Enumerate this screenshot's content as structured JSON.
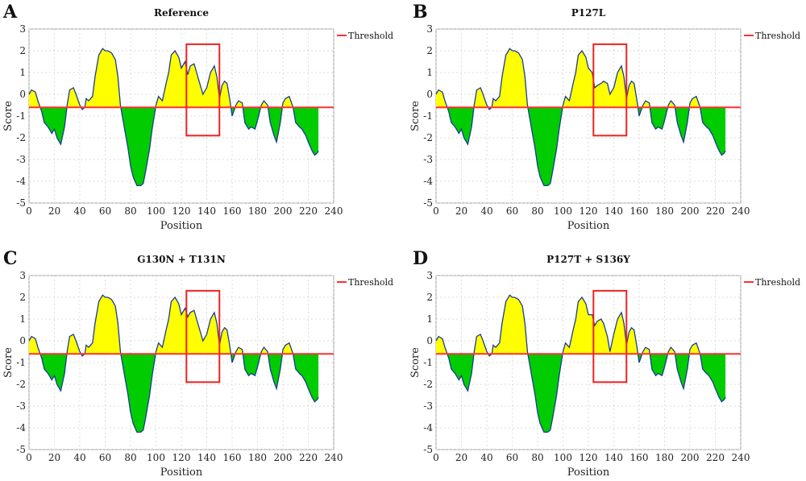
{
  "chart_data": [
    {
      "type": "area",
      "letter": "A",
      "title": "Reference",
      "xlabel": "Position",
      "ylabel": "Score",
      "xlim": [
        0,
        240
      ],
      "ylim": [
        -5,
        3
      ],
      "xticks": [
        "0",
        "20",
        "40",
        "60",
        "80",
        "100",
        "120",
        "140",
        "160",
        "180",
        "200",
        "220",
        "240"
      ],
      "yticks": [
        "3",
        "2",
        "1",
        "0",
        "-1",
        "-2",
        "-3",
        "-4",
        "-5"
      ],
      "threshold": -0.6,
      "legend": "Threshold",
      "legend_position": "top-right",
      "grid": true,
      "highlight_box": {
        "x": [
          124,
          150
        ],
        "y": [
          -1.9,
          2.3
        ]
      },
      "colors": {
        "above": "#ffff00",
        "below": "#00cc00",
        "line": "#1a3d8f",
        "threshold": "#ff3030",
        "box": "#ee2222"
      },
      "series": [
        {
          "x": [
            0,
            2,
            5,
            7,
            10,
            12,
            15,
            18,
            20,
            22,
            25,
            28,
            30,
            32,
            35,
            37,
            40,
            42,
            44,
            45,
            47,
            50,
            52,
            55,
            58,
            60,
            62,
            65,
            68,
            70,
            72,
            75,
            78,
            80,
            82,
            85,
            88,
            90,
            92,
            95,
            97,
            100,
            102,
            105,
            108,
            110,
            112,
            115,
            118,
            120,
            123,
            125,
            127,
            130,
            132,
            135,
            137,
            140,
            143,
            146,
            148,
            150,
            152,
            154,
            156,
            158,
            160,
            163,
            165,
            168,
            170,
            173,
            175,
            178,
            180,
            183,
            185,
            188,
            190,
            193,
            195,
            198,
            200,
            202,
            205,
            208,
            210,
            213,
            215,
            218,
            220,
            223,
            225,
            227,
            228
          ],
          "y": [
            0.0,
            0.2,
            0.1,
            -0.3,
            -0.8,
            -1.3,
            -1.5,
            -1.8,
            -1.6,
            -2.0,
            -2.3,
            -1.5,
            -0.5,
            0.2,
            0.3,
            0.0,
            -0.5,
            -0.7,
            -0.6,
            -0.2,
            -0.3,
            -0.1,
            0.8,
            1.8,
            2.1,
            2.0,
            2.0,
            1.9,
            1.6,
            0.8,
            -0.5,
            -1.5,
            -2.5,
            -3.3,
            -3.8,
            -4.2,
            -4.2,
            -4.1,
            -3.5,
            -2.5,
            -1.6,
            -0.5,
            -0.1,
            -0.3,
            0.5,
            1.0,
            1.8,
            2.0,
            1.7,
            1.2,
            1.5,
            0.9,
            1.3,
            1.4,
            1.0,
            0.4,
            0.0,
            0.3,
            1.0,
            1.3,
            0.8,
            -0.2,
            0.4,
            0.6,
            0.5,
            -0.2,
            -1.0,
            -0.5,
            -0.3,
            -0.4,
            -1.3,
            -1.6,
            -1.5,
            -1.6,
            -1.2,
            -0.5,
            -0.3,
            -0.5,
            -1.3,
            -1.9,
            -2.2,
            -1.3,
            -0.4,
            -0.2,
            -0.1,
            -0.6,
            -1.3,
            -1.5,
            -1.6,
            -1.9,
            -2.2,
            -2.6,
            -2.8,
            -2.7,
            -2.6
          ]
        }
      ]
    },
    {
      "type": "area",
      "letter": "B",
      "title": "P127L",
      "xlabel": "Position",
      "ylabel": "Score",
      "xlim": [
        0,
        240
      ],
      "ylim": [
        -5,
        3
      ],
      "xticks": [
        "0",
        "20",
        "40",
        "60",
        "80",
        "100",
        "120",
        "140",
        "160",
        "180",
        "200",
        "220",
        "240"
      ],
      "yticks": [
        "3",
        "2",
        "1",
        "0",
        "-1",
        "-2",
        "-3",
        "-4",
        "-5"
      ],
      "threshold": -0.6,
      "legend": "Threshold",
      "legend_position": "top-right",
      "grid": true,
      "highlight_box": {
        "x": [
          124,
          150
        ],
        "y": [
          -1.9,
          2.3
        ]
      },
      "colors": {
        "above": "#ffff00",
        "below": "#00cc00",
        "line": "#1a3d8f",
        "threshold": "#ff3030",
        "box": "#ee2222"
      },
      "series": [
        {
          "x": [
            0,
            2,
            5,
            7,
            10,
            12,
            15,
            18,
            20,
            22,
            25,
            28,
            30,
            32,
            35,
            37,
            40,
            42,
            44,
            45,
            47,
            50,
            52,
            55,
            58,
            60,
            62,
            65,
            68,
            70,
            72,
            75,
            78,
            80,
            82,
            85,
            88,
            90,
            92,
            95,
            97,
            100,
            102,
            105,
            108,
            110,
            112,
            115,
            118,
            120,
            123,
            125,
            127,
            130,
            132,
            135,
            137,
            140,
            143,
            146,
            148,
            150,
            152,
            154,
            156,
            158,
            160,
            163,
            165,
            168,
            170,
            173,
            175,
            178,
            180,
            183,
            185,
            188,
            190,
            193,
            195,
            198,
            200,
            202,
            205,
            208,
            210,
            213,
            215,
            218,
            220,
            223,
            225,
            227,
            228
          ],
          "y": [
            0.0,
            0.2,
            0.1,
            -0.3,
            -0.8,
            -1.3,
            -1.5,
            -1.8,
            -1.6,
            -2.0,
            -2.3,
            -1.5,
            -0.5,
            0.2,
            0.3,
            0.0,
            -0.5,
            -0.7,
            -0.6,
            -0.2,
            -0.3,
            -0.1,
            0.8,
            1.8,
            2.1,
            2.0,
            2.0,
            1.9,
            1.6,
            0.8,
            -0.5,
            -1.5,
            -2.5,
            -3.3,
            -3.8,
            -4.2,
            -4.2,
            -4.1,
            -3.5,
            -2.5,
            -1.6,
            -0.5,
            -0.1,
            -0.3,
            0.5,
            1.0,
            1.8,
            2.0,
            1.7,
            1.2,
            1.0,
            0.3,
            0.4,
            0.5,
            0.6,
            0.5,
            0.0,
            0.3,
            1.0,
            1.3,
            0.8,
            -0.2,
            0.4,
            0.6,
            0.5,
            -0.2,
            -1.0,
            -0.5,
            -0.3,
            -0.4,
            -1.3,
            -1.6,
            -1.5,
            -1.6,
            -1.2,
            -0.5,
            -0.3,
            -0.5,
            -1.3,
            -1.9,
            -2.2,
            -1.3,
            -0.4,
            -0.2,
            -0.1,
            -0.6,
            -1.3,
            -1.5,
            -1.6,
            -1.9,
            -2.2,
            -2.6,
            -2.8,
            -2.7,
            -2.6
          ]
        }
      ]
    },
    {
      "type": "area",
      "letter": "C",
      "title": "G130N + T131N",
      "xlabel": "Position",
      "ylabel": "Score",
      "xlim": [
        0,
        240
      ],
      "ylim": [
        -5,
        3
      ],
      "xticks": [
        "0",
        "20",
        "40",
        "60",
        "80",
        "100",
        "120",
        "140",
        "160",
        "180",
        "200",
        "220",
        "240"
      ],
      "yticks": [
        "3",
        "2",
        "1",
        "0",
        "-1",
        "-2",
        "-3",
        "-4",
        "-5"
      ],
      "threshold": -0.6,
      "legend": "Threshold",
      "legend_position": "top-right",
      "grid": true,
      "highlight_box": {
        "x": [
          124,
          150
        ],
        "y": [
          -1.9,
          2.3
        ]
      },
      "colors": {
        "above": "#ffff00",
        "below": "#00cc00",
        "line": "#1a3d8f",
        "threshold": "#ff3030",
        "box": "#ee2222"
      },
      "series": [
        {
          "x": [
            0,
            2,
            5,
            7,
            10,
            12,
            15,
            18,
            20,
            22,
            25,
            28,
            30,
            32,
            35,
            37,
            40,
            42,
            44,
            45,
            47,
            50,
            52,
            55,
            58,
            60,
            62,
            65,
            68,
            70,
            72,
            75,
            78,
            80,
            82,
            85,
            88,
            90,
            92,
            95,
            97,
            100,
            102,
            105,
            108,
            110,
            112,
            115,
            118,
            120,
            123,
            125,
            127,
            130,
            132,
            135,
            137,
            140,
            143,
            146,
            148,
            150,
            152,
            154,
            156,
            158,
            160,
            163,
            165,
            168,
            170,
            173,
            175,
            178,
            180,
            183,
            185,
            188,
            190,
            193,
            195,
            198,
            200,
            202,
            205,
            208,
            210,
            213,
            215,
            218,
            220,
            223,
            225,
            227,
            228
          ],
          "y": [
            0.0,
            0.2,
            0.1,
            -0.3,
            -0.8,
            -1.3,
            -1.5,
            -1.8,
            -1.6,
            -2.0,
            -2.3,
            -1.5,
            -0.5,
            0.2,
            0.3,
            0.0,
            -0.5,
            -0.7,
            -0.6,
            -0.2,
            -0.3,
            -0.1,
            0.8,
            1.8,
            2.1,
            2.0,
            2.0,
            1.9,
            1.6,
            0.8,
            -0.5,
            -1.5,
            -2.5,
            -3.3,
            -3.8,
            -4.2,
            -4.2,
            -4.1,
            -3.5,
            -2.5,
            -1.6,
            -0.5,
            -0.1,
            -0.3,
            0.5,
            1.0,
            1.8,
            2.0,
            1.7,
            1.2,
            1.5,
            1.1,
            1.3,
            1.4,
            1.0,
            0.4,
            0.0,
            0.3,
            1.0,
            1.3,
            0.8,
            -0.2,
            0.4,
            0.6,
            0.5,
            -0.2,
            -1.0,
            -0.5,
            -0.3,
            -0.4,
            -1.3,
            -1.6,
            -1.5,
            -1.6,
            -1.2,
            -0.5,
            -0.3,
            -0.5,
            -1.3,
            -1.9,
            -2.2,
            -1.3,
            -0.4,
            -0.2,
            -0.1,
            -0.6,
            -1.3,
            -1.5,
            -1.6,
            -1.9,
            -2.2,
            -2.6,
            -2.8,
            -2.7,
            -2.6
          ]
        }
      ]
    },
    {
      "type": "area",
      "letter": "D",
      "title": "P127T + S136Y",
      "xlabel": "Position",
      "ylabel": "Score",
      "xlim": [
        0,
        240
      ],
      "ylim": [
        -5,
        3
      ],
      "xticks": [
        "0",
        "20",
        "40",
        "60",
        "80",
        "100",
        "120",
        "140",
        "160",
        "180",
        "200",
        "220",
        "240"
      ],
      "yticks": [
        "3",
        "2",
        "1",
        "0",
        "-1",
        "-2",
        "-3",
        "-4",
        "-5"
      ],
      "threshold": -0.6,
      "legend": "Threshold",
      "legend_position": "top-right",
      "grid": true,
      "highlight_box": {
        "x": [
          124,
          150
        ],
        "y": [
          -1.9,
          2.3
        ]
      },
      "colors": {
        "above": "#ffff00",
        "below": "#00cc00",
        "line": "#1a3d8f",
        "threshold": "#ff3030",
        "box": "#ee2222"
      },
      "series": [
        {
          "x": [
            0,
            2,
            5,
            7,
            10,
            12,
            15,
            18,
            20,
            22,
            25,
            28,
            30,
            32,
            35,
            37,
            40,
            42,
            44,
            45,
            47,
            50,
            52,
            55,
            58,
            60,
            62,
            65,
            68,
            70,
            72,
            75,
            78,
            80,
            82,
            85,
            88,
            90,
            92,
            95,
            97,
            100,
            102,
            105,
            108,
            110,
            112,
            115,
            118,
            120,
            123,
            125,
            127,
            130,
            132,
            135,
            137,
            140,
            143,
            146,
            148,
            150,
            152,
            154,
            156,
            158,
            160,
            163,
            165,
            168,
            170,
            173,
            175,
            178,
            180,
            183,
            185,
            188,
            190,
            193,
            195,
            198,
            200,
            202,
            205,
            208,
            210,
            213,
            215,
            218,
            220,
            223,
            225,
            227,
            228
          ],
          "y": [
            0.0,
            0.2,
            0.1,
            -0.3,
            -0.8,
            -1.3,
            -1.5,
            -1.8,
            -1.6,
            -2.0,
            -2.3,
            -1.5,
            -0.5,
            0.2,
            0.3,
            0.0,
            -0.5,
            -0.7,
            -0.6,
            -0.2,
            -0.3,
            -0.1,
            0.8,
            1.8,
            2.1,
            2.0,
            2.0,
            1.9,
            1.6,
            0.8,
            -0.5,
            -1.5,
            -2.5,
            -3.3,
            -3.8,
            -4.2,
            -4.2,
            -4.1,
            -3.5,
            -2.5,
            -1.6,
            -0.5,
            -0.1,
            -0.3,
            0.5,
            1.0,
            1.8,
            2.0,
            1.7,
            1.2,
            1.2,
            0.7,
            0.9,
            1.0,
            0.8,
            0.2,
            -0.5,
            0.3,
            1.0,
            1.3,
            0.8,
            -0.2,
            0.4,
            0.6,
            0.5,
            -0.2,
            -1.0,
            -0.5,
            -0.3,
            -0.4,
            -1.3,
            -1.6,
            -1.5,
            -1.6,
            -1.2,
            -0.5,
            -0.3,
            -0.5,
            -1.3,
            -1.9,
            -2.2,
            -1.3,
            -0.4,
            -0.2,
            -0.1,
            -0.6,
            -1.3,
            -1.5,
            -1.6,
            -1.9,
            -2.2,
            -2.6,
            -2.8,
            -2.7,
            -2.6
          ]
        }
      ]
    }
  ]
}
